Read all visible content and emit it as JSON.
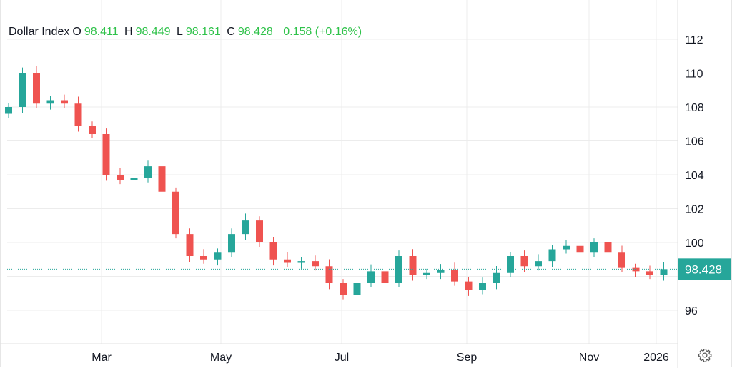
{
  "header": {
    "symbol": "Dollar Index",
    "open_label": "O",
    "open": "98.411",
    "high_label": "H",
    "high": "98.449",
    "low_label": "L",
    "low": "98.161",
    "close_label": "C",
    "close": "98.428",
    "change": "0.158 (+0.16%)"
  },
  "last_price_label": "98.428",
  "settings_icon": "gear-icon",
  "colors": {
    "up": "#26a69a",
    "down": "#ef5350",
    "accent": "#26a69a",
    "legend_value": "#2fc24a"
  },
  "chart_data": {
    "type": "candlestick",
    "title": "Dollar Index",
    "y_ticks": [
      96,
      100,
      102,
      104,
      106,
      108,
      110,
      112
    ],
    "ylim": [
      94.1,
      114.3
    ],
    "x_ticks": [
      "Mar",
      "May",
      "Jul",
      "Sep",
      "Nov",
      "2026"
    ],
    "grid": true,
    "last_price": 98.428,
    "weekly_close": [
      108.0,
      110.0,
      108.2,
      108.4,
      108.2,
      106.9,
      106.4,
      104.0,
      103.7,
      103.8,
      104.5,
      103.0,
      100.5,
      99.2,
      99.0,
      99.4,
      100.5,
      101.3,
      100.0,
      99.0,
      98.8,
      98.9,
      98.6,
      97.6,
      96.9,
      97.6,
      98.3,
      97.6,
      99.2,
      98.1,
      98.2,
      98.4,
      97.7,
      97.2,
      97.6,
      98.2,
      99.2,
      98.6,
      98.9,
      99.6,
      99.8,
      99.4,
      100.0,
      99.4,
      98.5,
      98.3,
      98.1,
      98.428
    ]
  }
}
